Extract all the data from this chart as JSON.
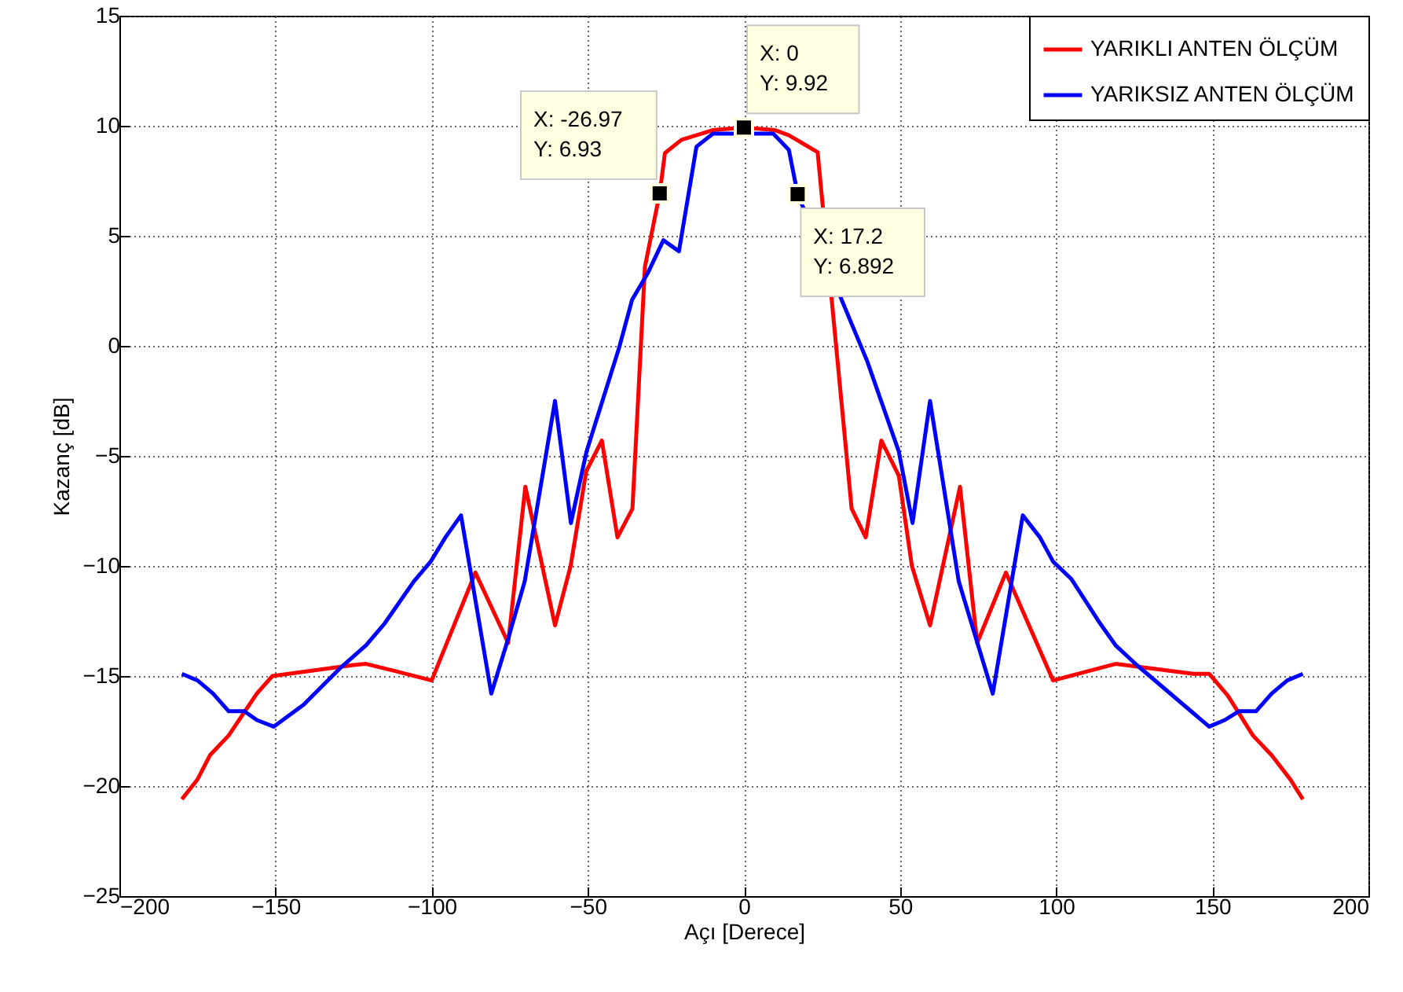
{
  "chart_data": {
    "type": "line",
    "xlabel": "Açı [Derece]",
    "ylabel": "Kazanç [dB]",
    "xlim": [
      -200,
      200
    ],
    "xticks": [
      -200,
      -150,
      -100,
      -50,
      0,
      50,
      100,
      150,
      200
    ],
    "ylim": [
      -25,
      15
    ],
    "yticks": [
      -25,
      -20,
      -15,
      -10,
      -5,
      0,
      5,
      10,
      15
    ],
    "grid": true,
    "legend": "top right",
    "marker": "none",
    "line_style": "solid",
    "series": [
      {
        "name": "YARIKLI ANTEN ÖLÇÜM",
        "color": "#ff0000",
        "x": [
          -180,
          -175,
          -171,
          -165,
          -156,
          -151,
          -125,
          -121,
          -111,
          -100,
          -86,
          -75.5,
          -70,
          -60.5,
          -55.5,
          -50.5,
          -45.5,
          -40.5,
          -35.7,
          -31.7,
          -26.97,
          -25.3,
          -20,
          -10,
          0,
          10,
          14.4,
          23.6,
          34.5,
          39,
          44,
          49.6,
          53.8,
          59.6,
          69.2,
          74.7,
          83.9,
          99,
          119,
          144,
          149,
          155,
          163,
          169,
          175,
          179
        ],
        "values": [
          -20.6,
          -19.7,
          -18.6,
          -17.7,
          -15.8,
          -15.0,
          -14.5,
          -14.45,
          -14.8,
          -15.2,
          -10.3,
          -13.5,
          -6.4,
          -12.7,
          -10,
          -5.7,
          -4.3,
          -8.7,
          -7.4,
          3.6,
          6.93,
          8.76,
          9.36,
          9.8,
          9.92,
          9.8,
          9.57,
          8.8,
          -7.4,
          -8.7,
          -4.3,
          -5.9,
          -10,
          -12.7,
          -6.4,
          -13.5,
          -10.3,
          -15.2,
          -14.45,
          -14.9,
          -14.9,
          -15.9,
          -17.7,
          -18.6,
          -19.7,
          -20.6
        ]
      },
      {
        "name": "YARIKSIZ ANTEN ÖLÇÜM",
        "color": "#0000ff",
        "x": [
          -180,
          -175,
          -170,
          -165,
          -160,
          -156,
          -150.6,
          -141,
          -129,
          -121,
          -115,
          -105.7,
          -100.3,
          -95.6,
          -90.6,
          -80.9,
          -75.5,
          -70.2,
          -60.5,
          -55.4,
          -50.4,
          -40,
          -35.8,
          -30.8,
          -25.8,
          -20.8,
          -15.2,
          -9.9,
          9.4,
          14.4,
          17.2,
          39.5,
          49.6,
          54,
          59.6,
          68.8,
          79.7,
          89.3,
          94.8,
          99,
          104.9,
          114,
          119,
          125.8,
          149,
          154,
          158.5,
          164,
          169,
          174,
          179
        ],
        "values": [
          -14.9,
          -15.2,
          -15.8,
          -16.6,
          -16.6,
          -17.0,
          -17.3,
          -16.3,
          -14.6,
          -13.6,
          -12.6,
          -10.7,
          -9.8,
          -8.7,
          -7.7,
          -15.8,
          -13.3,
          -10.7,
          -2.5,
          -8.05,
          -4.8,
          -0.1,
          2.1,
          3.3,
          4.8,
          4.3,
          9.05,
          9.64,
          9.64,
          8.9,
          6.892,
          -0.7,
          -4.8,
          -8.05,
          -2.5,
          -10.7,
          -15.8,
          -7.7,
          -8.7,
          -9.8,
          -10.6,
          -12.6,
          -13.6,
          -14.5,
          -17.3,
          -17.0,
          -16.6,
          -16.6,
          -15.8,
          -15.2,
          -14.9
        ]
      }
    ],
    "annotations": [
      {
        "text": "X: -26.97\nY: 6.93",
        "x": -26.97,
        "y": 6.93
      },
      {
        "text": "X: 0\nY: 9.92",
        "x": 0,
        "y": 9.92
      },
      {
        "text": "X: 17.2\nY: 6.892",
        "x": 17.2,
        "y": 6.892
      }
    ]
  }
}
